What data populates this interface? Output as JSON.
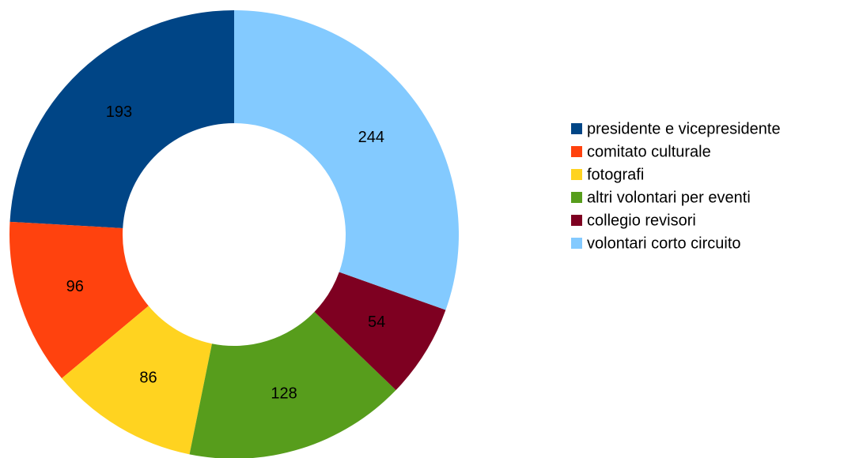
{
  "chart_data": {
    "type": "donut",
    "categories": [
      "presidente e vicepresidente",
      "comitato culturale",
      "fotografi",
      "altri volontari per eventi",
      "collegio revisori",
      "volontari corto circuito"
    ],
    "values": [
      193,
      96,
      86,
      128,
      54,
      244
    ],
    "colors": [
      "#004586",
      "#ff420e",
      "#ffd320",
      "#579d1c",
      "#7e0021",
      "#83caff"
    ],
    "legend": "right"
  }
}
